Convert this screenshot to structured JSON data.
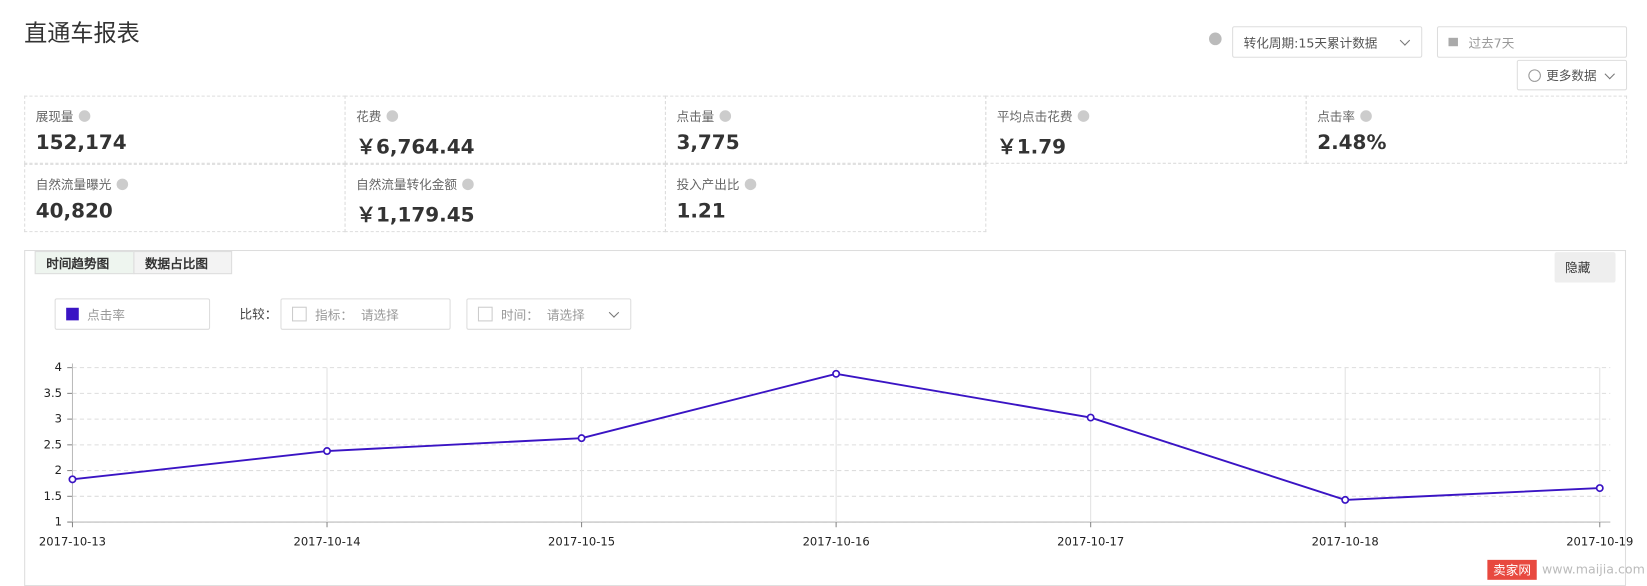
{
  "header": {
    "title": "直通车报表"
  },
  "controls": {
    "conversion_period": "转化周期:15天累计数据",
    "date_range": "过去7天",
    "more_data": "更多数据"
  },
  "metrics": [
    {
      "label": "展现量",
      "value": "152,174"
    },
    {
      "label": "花费",
      "value": "￥6,764.44"
    },
    {
      "label": "点击量",
      "value": "3,775"
    },
    {
      "label": "平均点击花费",
      "value": "￥1.79"
    },
    {
      "label": "点击率",
      "value": "2.48%"
    },
    {
      "label": "自然流量曝光",
      "value": "40,820"
    },
    {
      "label": "自然流量转化金额",
      "value": "￥1,179.45"
    },
    {
      "label": "投入产出比",
      "value": "1.21"
    }
  ],
  "chart_panel": {
    "tabs": [
      "时间趋势图",
      "数据占比图"
    ],
    "hide": "隐藏",
    "compare_label": "比较：",
    "compare_metric": "指标：  请选择",
    "compare_time": "时间：  请选择"
  },
  "chart_data": {
    "type": "line",
    "x": [
      "2017-10-13",
      "2017-10-14",
      "2017-10-15",
      "2017-10-16",
      "2017-10-17",
      "2017-10-18",
      "2017-10-19"
    ],
    "series": [
      {
        "name": "点击率",
        "color": "#3a14c4",
        "values": [
          1.83,
          2.38,
          2.63,
          3.88,
          3.03,
          1.43,
          1.66
        ]
      }
    ],
    "ylim": [
      1,
      4
    ],
    "yticks": [
      1,
      1.5,
      2,
      2.5,
      3,
      3.5,
      4
    ],
    "grid": true
  },
  "watermark": {
    "badge": "卖家网",
    "url": "www.maijia.com"
  }
}
